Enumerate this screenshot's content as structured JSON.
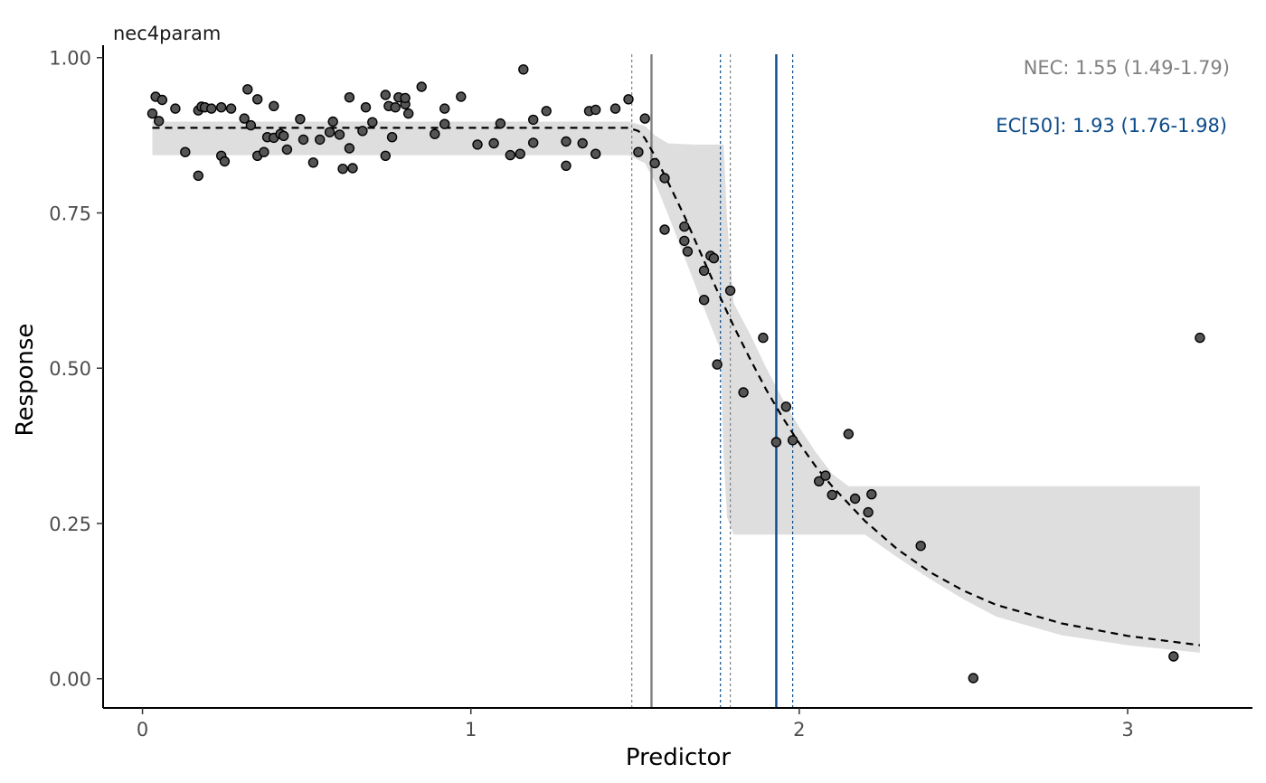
{
  "chart_data": {
    "type": "scatter",
    "title": "nec4param",
    "xlabel": "Predictor",
    "ylabel": "Response",
    "xlim": [
      -0.12,
      3.38
    ],
    "ylim": [
      -0.047,
      1.02
    ],
    "x_ticks": [
      0,
      1,
      2,
      3
    ],
    "x_tick_labels": [
      "0",
      "1",
      "2",
      "3"
    ],
    "y_ticks": [
      0,
      0.25,
      0.5,
      0.75,
      1.0
    ],
    "y_tick_labels": [
      "0.00",
      "0.25",
      "0.50",
      "0.75",
      "1.00"
    ],
    "grid": false,
    "points": {
      "fill": "#555555",
      "stroke": "#000000",
      "x": [
        0.03,
        0.04,
        0.05,
        0.06,
        0.1,
        0.13,
        0.17,
        0.17,
        0.18,
        0.19,
        0.21,
        0.24,
        0.24,
        0.25,
        0.27,
        0.31,
        0.32,
        0.33,
        0.35,
        0.35,
        0.37,
        0.38,
        0.4,
        0.4,
        0.42,
        0.43,
        0.44,
        0.48,
        0.49,
        0.52,
        0.54,
        0.57,
        0.58,
        0.6,
        0.61,
        0.63,
        0.63,
        0.64,
        0.67,
        0.68,
        0.7,
        0.74,
        0.74,
        0.75,
        0.76,
        0.77,
        0.78,
        0.8,
        0.8,
        0.81,
        0.85,
        0.89,
        0.92,
        0.92,
        0.97,
        1.02,
        1.07,
        1.09,
        1.12,
        1.15,
        1.16,
        1.19,
        1.19,
        1.23,
        1.29,
        1.29,
        1.34,
        1.36,
        1.38,
        1.38,
        1.44,
        1.48,
        1.51,
        1.53,
        1.56,
        1.59,
        1.59,
        1.65,
        1.65,
        1.66,
        1.71,
        1.71,
        1.73,
        1.74,
        1.75,
        1.79,
        1.83,
        1.89,
        1.93,
        1.96,
        1.98,
        2.06,
        2.08,
        2.1,
        2.15,
        2.17,
        2.21,
        2.22,
        2.37,
        2.53,
        3.14,
        3.22
      ],
      "y": [
        0.91,
        0.937,
        0.898,
        0.932,
        0.918,
        0.848,
        0.915,
        0.81,
        0.921,
        0.92,
        0.918,
        0.842,
        0.92,
        0.833,
        0.918,
        0.902,
        0.949,
        0.891,
        0.842,
        0.933,
        0.848,
        0.872,
        0.871,
        0.922,
        0.877,
        0.874,
        0.852,
        0.901,
        0.868,
        0.831,
        0.868,
        0.88,
        0.897,
        0.876,
        0.821,
        0.854,
        0.936,
        0.822,
        0.882,
        0.92,
        0.896,
        0.842,
        0.94,
        0.922,
        0.872,
        0.92,
        0.936,
        0.925,
        0.935,
        0.91,
        0.953,
        0.877,
        0.893,
        0.918,
        0.937,
        0.86,
        0.862,
        0.894,
        0.843,
        0.845,
        0.981,
        0.863,
        0.9,
        0.914,
        0.826,
        0.865,
        0.862,
        0.914,
        0.845,
        0.916,
        0.918,
        0.933,
        0.848,
        0.902,
        0.83,
        0.723,
        0.806,
        0.705,
        0.728,
        0.688,
        0.61,
        0.657,
        0.681,
        0.677,
        0.506,
        0.625,
        0.461,
        0.549,
        0.381,
        0.438,
        0.384,
        0.318,
        0.327,
        0.296,
        0.394,
        0.29,
        0.268,
        0.297,
        0.214,
        0.001,
        0.036,
        0.549
      ]
    },
    "fit_curve": {
      "style": "dashed",
      "x": [
        0.03,
        1.48,
        1.51,
        1.53,
        1.56,
        1.6,
        1.65,
        1.7,
        1.75,
        1.8,
        1.85,
        1.9,
        1.95,
        2.0,
        2.05,
        2.1,
        2.2,
        2.3,
        2.4,
        2.5,
        2.6,
        2.8,
        3.0,
        3.22
      ],
      "y": [
        0.887,
        0.887,
        0.882,
        0.87,
        0.842,
        0.8,
        0.745,
        0.685,
        0.625,
        0.568,
        0.515,
        0.465,
        0.42,
        0.379,
        0.342,
        0.31,
        0.254,
        0.208,
        0.171,
        0.142,
        0.119,
        0.089,
        0.069,
        0.054
      ]
    },
    "credible_band": {
      "fill": "#dedede",
      "x": [
        0.03,
        1.48,
        1.53,
        1.56,
        1.6,
        1.64,
        1.68,
        1.72,
        1.76,
        1.77,
        1.78,
        1.8,
        1.85,
        1.9,
        1.95,
        2.0,
        2.05,
        2.1,
        2.15,
        2.2,
        2.3,
        2.4,
        2.5,
        2.6,
        2.8,
        3.0,
        3.22
      ],
      "lower": [
        0.843,
        0.843,
        0.83,
        0.8,
        0.748,
        0.693,
        0.638,
        0.583,
        0.53,
        0.355,
        0.26,
        0.232,
        0.232,
        0.232,
        0.232,
        0.232,
        0.232,
        0.232,
        0.232,
        0.232,
        0.195,
        0.16,
        0.128,
        0.1,
        0.07,
        0.054,
        0.042
      ],
      "upper": [
        0.897,
        0.897,
        0.89,
        0.875,
        0.862,
        0.861,
        0.86,
        0.86,
        0.86,
        0.86,
        0.74,
        0.605,
        0.555,
        0.5,
        0.45,
        0.405,
        0.365,
        0.33,
        0.31,
        0.31,
        0.31,
        0.31,
        0.31,
        0.31,
        0.31,
        0.31,
        0.31
      ]
    },
    "nec": {
      "value": 1.55,
      "lower": 1.49,
      "upper": 1.79,
      "color": "#808080",
      "label": "NEC: 1.55 (1.49-1.79)"
    },
    "ec50": {
      "value": 1.93,
      "lower": 1.76,
      "upper": 1.98,
      "color": "#0b4b8a",
      "label": "EC[50]: 1.93 (1.76-1.98)"
    }
  }
}
